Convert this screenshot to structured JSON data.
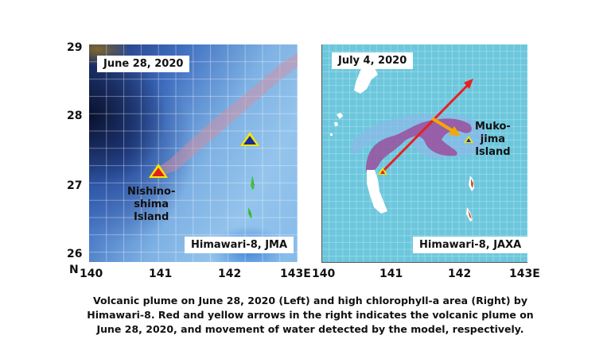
{
  "left_map": {
    "date_label": "June 28, 2020",
    "source_label": "Himawari-8, JMA",
    "island_label_lines": [
      "Nishino-",
      "shima",
      "Island"
    ],
    "markers": [
      {
        "name": "nishinoshima",
        "lon": 141.0,
        "lat": 27.25,
        "fill": "#e02020",
        "outline": "#f5e800"
      },
      {
        "name": "mukojima",
        "lon": 142.3,
        "lat": 27.7,
        "fill": "#1a2d9a",
        "outline": "#f5e800"
      }
    ],
    "plume_color": "#e08a9a"
  },
  "right_map": {
    "date_label": "July 4, 2020",
    "source_label": "Himawari-8, JAXA",
    "island_label_lines": [
      "Muko-",
      "jima",
      "Island"
    ],
    "ocean_color": "#6cc7dd",
    "chlorophyll_color": "#9a4f9e",
    "arrows": [
      {
        "name": "volcanic-plume-arrow",
        "color": "#e82020",
        "from": {
          "lon": 140.9,
          "lat": 27.2
        },
        "to": {
          "lon": 142.15,
          "lat": 28.6
        }
      },
      {
        "name": "water-movement-arrow",
        "color": "#f5a800",
        "from": {
          "lon": 141.6,
          "lat": 27.95
        },
        "to": {
          "lon": 141.95,
          "lat": 27.75
        }
      }
    ],
    "markers": [
      {
        "name": "nishinoshima",
        "lon": 140.9,
        "lat": 27.2
      },
      {
        "name": "mukojima",
        "lon": 142.15,
        "lat": 27.65
      }
    ]
  },
  "axes": {
    "y_ticks": [
      "29",
      "28",
      "27",
      "26"
    ],
    "y_unit": "N",
    "left_x_ticks": [
      "140",
      "141",
      "142",
      "143E"
    ],
    "right_x_ticks": [
      "140",
      "141",
      "142",
      "143E"
    ],
    "lon_range": [
      140,
      143
    ],
    "lat_range": [
      26,
      29
    ]
  },
  "caption": {
    "lines": [
      "Volcanic plume on June 28, 2020 (Left) and high chlorophyll-a area (Right) by",
      "Himawari-8. Red and yellow arrows in the right indicates the volcanic plume on",
      "June 28, 2020, and movement of water detected by the model, respectively."
    ]
  }
}
